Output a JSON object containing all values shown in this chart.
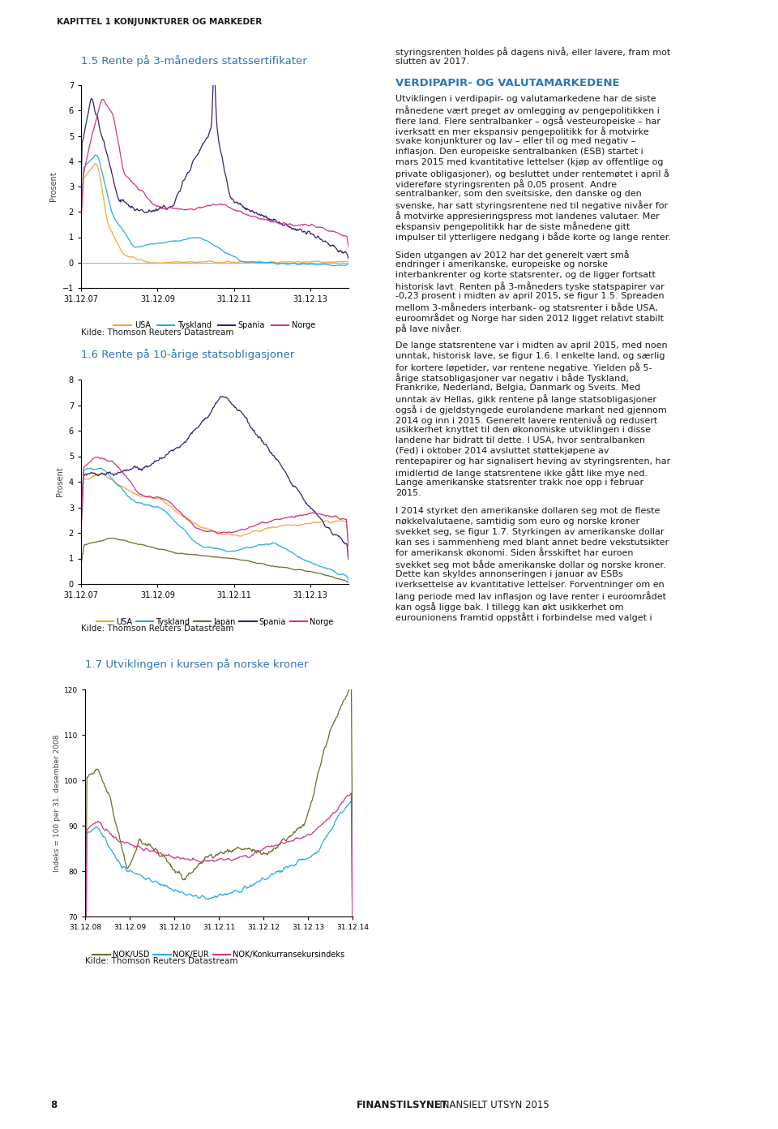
{
  "page_title": "KAPITTEL 1 KONJUNKTURER OG MARKEDER",
  "footer_bold": "FINANSTILSYNET",
  "footer_normal": " FINANSIELT UTSYN 2015",
  "footer_page": "8",
  "background_color": "#ffffff",
  "chart1": {
    "title": "1.5 Rente på 3-måneders statssertifikater",
    "ylabel": "Prosent",
    "source": "Kilde: Thomson Reuters Datastream",
    "ylim": [
      -1,
      7
    ],
    "yticks": [
      -1,
      0,
      1,
      2,
      3,
      4,
      5,
      6,
      7
    ],
    "xtick_labels": [
      "31.12.07",
      "31.12.09",
      "31.12.11",
      "31.12.13"
    ],
    "legend": [
      "USA",
      "Tyskland",
      "Spania",
      "Norge"
    ],
    "colors": [
      "#f4a83a",
      "#29abe2",
      "#3b1f6e",
      "#d63384"
    ]
  },
  "chart2": {
    "title": "1.6 Rente på 10-årige statsobligasjoner",
    "ylabel": "Prosent",
    "source": "Kilde: Thomson Reuters Datastream",
    "ylim": [
      0,
      8
    ],
    "yticks": [
      0,
      1,
      2,
      3,
      4,
      5,
      6,
      7,
      8
    ],
    "xtick_labels": [
      "31.12.07",
      "31.12.09",
      "31.12.11",
      "31.12.13"
    ],
    "legend": [
      "USA",
      "Tyskland",
      "Japan",
      "Spania",
      "Norge"
    ],
    "colors": [
      "#f4a83a",
      "#29abe2",
      "#6b6b2a",
      "#3b1f6e",
      "#d63384"
    ]
  },
  "chart3": {
    "title": "1.7 Utviklingen i kursen på norske kroner",
    "ylabel": "Indeks = 100 per 31. desember 2008",
    "source": "Kilde: Thomson Reuters Datastream",
    "ylim": [
      70,
      120
    ],
    "yticks": [
      70,
      80,
      90,
      100,
      110,
      120
    ],
    "xtick_labels": [
      "31.12.08",
      "31.12.09",
      "31.12.10",
      "31.12.11",
      "31.12.12",
      "31.12.13",
      "31.12.14"
    ],
    "legend": [
      "NOK/USD",
      "NOK/EUR",
      "NOK/Konkurransekursindeks"
    ],
    "colors": [
      "#6b6b2a",
      "#29abe2",
      "#d63384"
    ]
  },
  "title_color": "#2e74b5",
  "axis_color": "#444444",
  "text_color": "#1a1a1a",
  "source_fontsize": 7.5,
  "chart_title_fontsize": 9.5,
  "tick_fontsize": 7,
  "legend_fontsize": 7
}
